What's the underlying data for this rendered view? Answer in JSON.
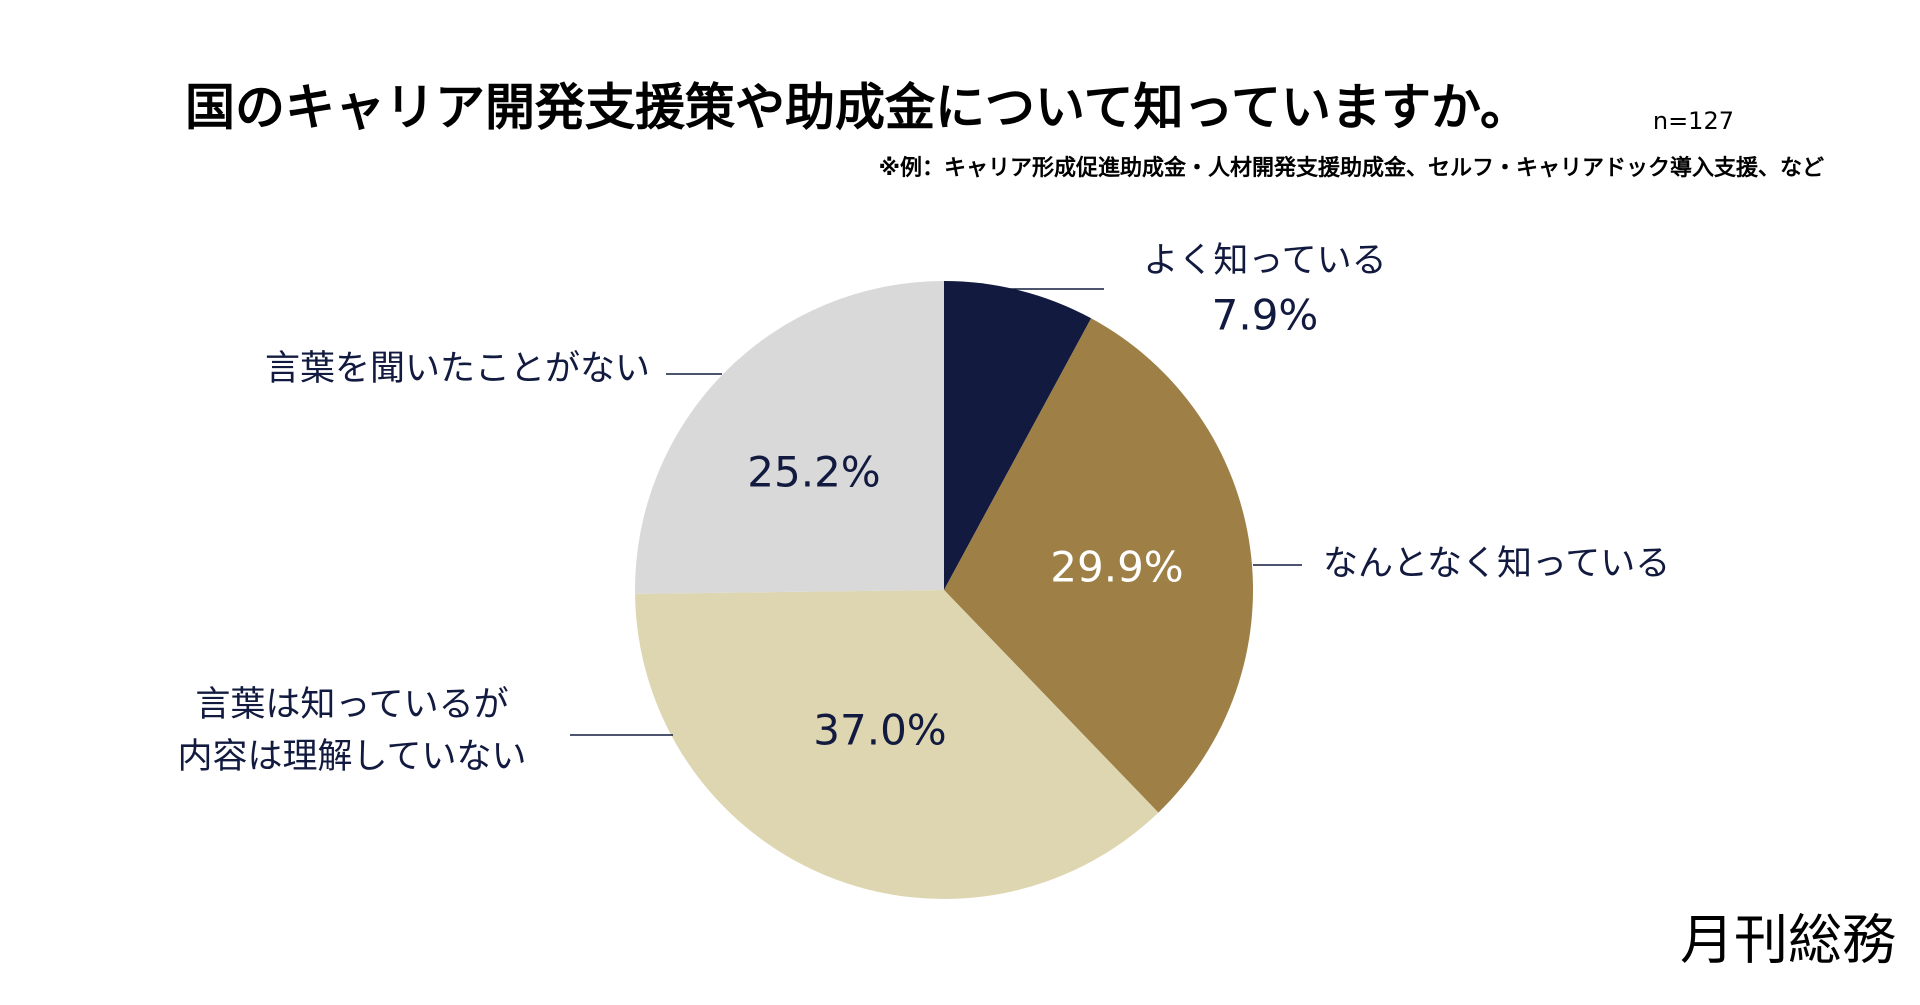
{
  "chart_data": {
    "type": "pie",
    "title": "国のキャリア開発支援策や助成金について知っていますか。",
    "sample_size": "n=127",
    "subtitle": "※例：キャリア形成促進助成金・人材開発支援助成金、セルフ・キャリアドック導入支援、など",
    "categories": [
      [
        "よく知っている"
      ],
      [
        "なんとなく知っている"
      ],
      [
        "言葉は知っているが",
        "内容は理解していない"
      ],
      [
        "言葉を聞いたことがない"
      ]
    ],
    "values": [
      7.9,
      29.9,
      37.0,
      25.2
    ],
    "value_labels": [
      "7.9%",
      "29.9%",
      "37.0%",
      "25.2%"
    ],
    "colors": [
      "#121b3f",
      "#9e8047",
      "#ded6b1",
      "#d9d9d9"
    ],
    "brand": "月刊総務"
  }
}
